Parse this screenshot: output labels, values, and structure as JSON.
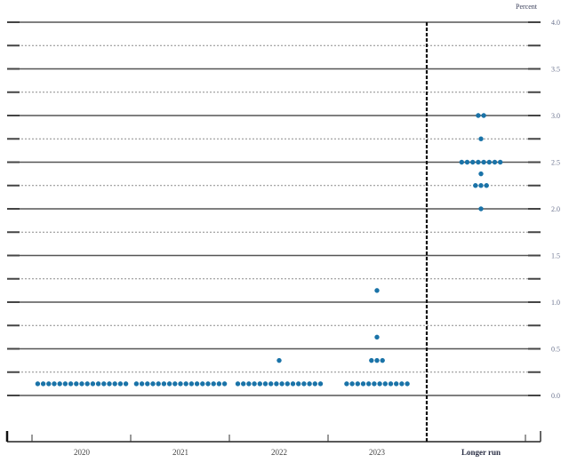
{
  "chart_data": {
    "type": "scatter",
    "subtype": "dot-plot",
    "title": "",
    "unit_label": "Percent",
    "xlabel": "",
    "ylabel": "Percent",
    "ylim": [
      0.0,
      4.0
    ],
    "y_ticks": [
      0.0,
      0.5,
      1.0,
      1.5,
      2.0,
      2.5,
      3.0,
      3.5,
      4.0
    ],
    "y_tick_labels": [
      "0.0",
      "0.5",
      "1.0",
      "1.5",
      "2.0",
      "2.5",
      "3.0",
      "3.5",
      "4.0"
    ],
    "minor_gridlines_every": 0.25,
    "categories": [
      "2020",
      "2021",
      "2022",
      "2023",
      "Longer run"
    ],
    "divider_before": "Longer run",
    "dot_color": "#1a73a8",
    "series": [
      {
        "name": "2020",
        "points": [
          {
            "value": 0.125,
            "count": 17
          }
        ]
      },
      {
        "name": "2021",
        "points": [
          {
            "value": 0.125,
            "count": 17
          }
        ]
      },
      {
        "name": "2022",
        "points": [
          {
            "value": 0.125,
            "count": 16
          },
          {
            "value": 0.375,
            "count": 1
          }
        ]
      },
      {
        "name": "2023",
        "points": [
          {
            "value": 0.125,
            "count": 12
          },
          {
            "value": 0.375,
            "count": 3
          },
          {
            "value": 0.625,
            "count": 1
          },
          {
            "value": 1.125,
            "count": 1
          }
        ]
      },
      {
        "name": "Longer run",
        "points": [
          {
            "value": 2.0,
            "count": 1
          },
          {
            "value": 2.25,
            "count": 3
          },
          {
            "value": 2.375,
            "count": 1
          },
          {
            "value": 2.5,
            "count": 8
          },
          {
            "value": 2.75,
            "count": 1
          },
          {
            "value": 3.0,
            "count": 2
          }
        ]
      }
    ],
    "grid": true,
    "legend": null
  }
}
